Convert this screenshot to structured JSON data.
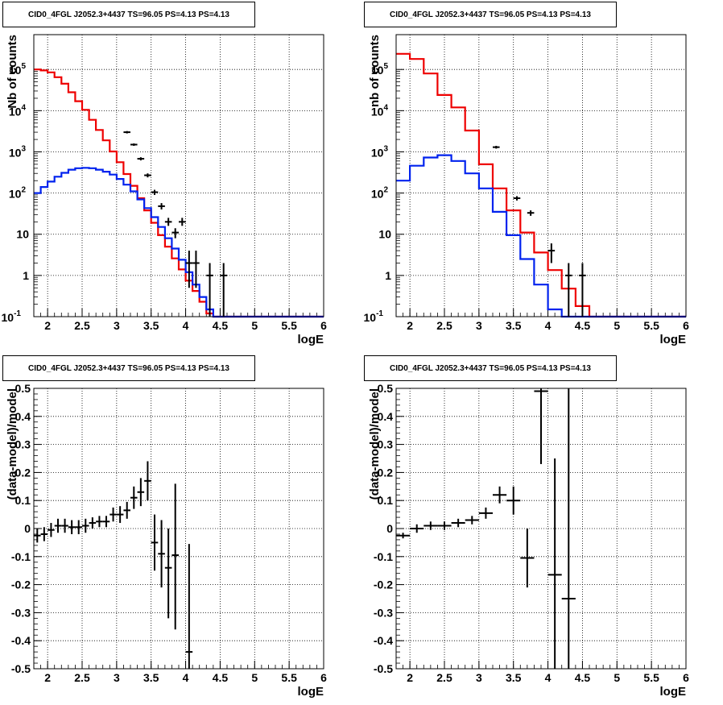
{
  "panels": [
    {
      "title": "CID0_4FGL J2052.3+4437 TS=96.05 PS=4.13 PS=4.13"
    },
    {
      "title": "CID0_4FGL J2052.3+4437 TS=96.05 PS=4.13 PS=4.13"
    },
    {
      "title": "CID0_4FGL J2052.3+4437 TS=96.05 PS=4.13 PS=4.13"
    },
    {
      "title": "CID0_4FGL J2052.3+4437 TS=96.05 PS=4.13 PS=4.13"
    }
  ],
  "colors": {
    "total_model": "#ee0000",
    "source_model": "#0022ee",
    "data": "#000000",
    "grid": "#000000"
  },
  "chart_data": [
    {
      "type": "line",
      "title": "CID0_4FGL J2052.3+4437 TS=96.05 PS=4.13 PS=4.13",
      "xlabel": "logE",
      "ylabel": "Nb of counts",
      "xlim": [
        1.8,
        6.0
      ],
      "ylim": [
        0.1,
        700000
      ],
      "yscale": "log",
      "grid": true,
      "xticks": [
        "2",
        "2.5",
        "3",
        "3.5",
        "4",
        "4.5",
        "5",
        "5.5",
        "6"
      ],
      "yticks": [
        "10^{-1}",
        "1",
        "10",
        "10^{2}",
        "10^{3}",
        "10^{4}",
        "10^{5}"
      ],
      "bin_edges": [
        1.8,
        1.9,
        2.0,
        2.1,
        2.2,
        2.3,
        2.4,
        2.5,
        2.6,
        2.7,
        2.8,
        2.9,
        3.0,
        3.1,
        3.2,
        3.3,
        3.4,
        3.5,
        3.6,
        3.7,
        3.8,
        3.9,
        4.0,
        4.1,
        4.2,
        4.3,
        4.4,
        4.5,
        4.6,
        4.7,
        4.8,
        4.9,
        5.0,
        5.1,
        5.2,
        5.3,
        5.4,
        5.5,
        5.6,
        5.7,
        5.8,
        5.9,
        6.0
      ],
      "series": [
        {
          "name": "",
          "role": "total_model",
          "values": [
            100000,
            95000,
            85000,
            65000,
            45000,
            28000,
            17000,
            10500,
            6000,
            3400,
            1900,
            1020,
            560,
            290,
            150,
            75,
            38,
            19,
            9.5,
            5,
            2.6,
            1.4,
            0.75,
            0.42,
            0.23,
            0.12,
            0.1,
            0.1,
            0.1,
            0.1,
            0.1,
            0.1,
            0.1,
            0.1,
            0.1,
            0.1,
            0.1,
            0.1,
            0.1,
            0.1,
            0.1,
            0.1
          ]
        },
        {
          "name": "",
          "role": "source_model",
          "values": [
            100,
            140,
            190,
            250,
            310,
            370,
            400,
            410,
            400,
            370,
            330,
            280,
            220,
            160,
            110,
            70,
            43,
            26,
            15,
            8,
            4.5,
            2.4,
            1.2,
            0.6,
            0.3,
            0.15,
            0.1,
            0.1,
            0.1,
            0.1,
            0.1,
            0.1,
            0.1,
            0.1,
            0.1,
            0.1,
            0.1,
            0.1,
            0.1,
            0.1,
            0.1,
            0.1
          ]
        },
        {
          "name": "",
          "role": "data",
          "points": [
            {
              "x": 3.15,
              "y": 3000,
              "ylo": 2800,
              "yhi": 3200
            },
            {
              "x": 3.25,
              "y": 1500,
              "ylo": 1400,
              "yhi": 1600
            },
            {
              "x": 3.35,
              "y": 680,
              "ylo": 620,
              "yhi": 740
            },
            {
              "x": 3.45,
              "y": 270,
              "ylo": 240,
              "yhi": 300
            },
            {
              "x": 3.55,
              "y": 105,
              "ylo": 90,
              "yhi": 120
            },
            {
              "x": 3.65,
              "y": 48,
              "ylo": 40,
              "yhi": 57
            },
            {
              "x": 3.75,
              "y": 20,
              "ylo": 16,
              "yhi": 25
            },
            {
              "x": 3.85,
              "y": 11,
              "ylo": 8,
              "yhi": 14
            },
            {
              "x": 3.95,
              "y": 20,
              "ylo": 16,
              "yhi": 25
            },
            {
              "x": 4.05,
              "y": 2,
              "ylo": 0.5,
              "yhi": 4
            },
            {
              "x": 4.15,
              "y": 2,
              "ylo": 0.5,
              "yhi": 4
            },
            {
              "x": 4.35,
              "y": 1,
              "ylo": 0.1,
              "yhi": 2
            },
            {
              "x": 4.55,
              "y": 1,
              "ylo": 0.1,
              "yhi": 2
            }
          ]
        }
      ]
    },
    {
      "type": "line",
      "title": "CID0_4FGL J2052.3+4437 TS=96.05 PS=4.13 PS=4.13",
      "xlabel": "logE",
      "ylabel": "nb of counts",
      "xlim": [
        1.8,
        6.0
      ],
      "ylim": [
        0.1,
        700000
      ],
      "yscale": "log",
      "grid": true,
      "xticks": [
        "2",
        "2.5",
        "3",
        "3.5",
        "4",
        "4.5",
        "5",
        "5.5",
        "6"
      ],
      "yticks": [
        "10^{-1}",
        "1",
        "10",
        "10^{2}",
        "10^{3}",
        "10^{4}",
        "10^{5}"
      ],
      "bin_edges": [
        1.8,
        2.0,
        2.2,
        2.4,
        2.6,
        2.8,
        3.0,
        3.2,
        3.4,
        3.6,
        3.8,
        4.0,
        4.2,
        4.4,
        4.6,
        4.8,
        5.0,
        5.2,
        5.4,
        5.6,
        5.8,
        6.0
      ],
      "series": [
        {
          "name": "",
          "role": "total_model",
          "values": [
            240000,
            180000,
            80000,
            24000,
            12000,
            3300,
            500,
            130,
            38,
            11,
            3.6,
            1.35,
            0.48,
            0.18,
            0.1,
            0.1,
            0.1,
            0.1,
            0.1,
            0.1,
            0.1
          ]
        },
        {
          "name": "",
          "role": "source_model",
          "values": [
            200,
            460,
            730,
            830,
            600,
            300,
            130,
            35,
            9.5,
            2.5,
            0.6,
            0.15,
            0.1,
            0.1,
            0.1,
            0.1,
            0.1,
            0.1,
            0.1,
            0.1,
            0.1
          ]
        },
        {
          "name": "",
          "role": "data",
          "points": [
            {
              "x": 3.25,
              "y": 1300,
              "ylo": 1200,
              "yhi": 1400
            },
            {
              "x": 3.55,
              "y": 75,
              "ylo": 66,
              "yhi": 84
            },
            {
              "x": 3.75,
              "y": 33,
              "ylo": 28,
              "yhi": 38
            },
            {
              "x": 4.05,
              "y": 4,
              "ylo": 2,
              "yhi": 6
            },
            {
              "x": 4.3,
              "y": 1,
              "ylo": 0.1,
              "yhi": 2
            },
            {
              "x": 4.5,
              "y": 1,
              "ylo": 0.1,
              "yhi": 2
            }
          ]
        }
      ]
    },
    {
      "type": "scatter",
      "title": "CID0_4FGL J2052.3+4437 TS=96.05 PS=4.13 PS=4.13",
      "xlabel": "logE",
      "ylabel": "(data-model)/model",
      "xlim": [
        1.8,
        6.0
      ],
      "ylim": [
        -0.5,
        0.5
      ],
      "yscale": "linear",
      "grid": true,
      "xticks": [
        "2",
        "2.5",
        "3",
        "3.5",
        "4",
        "4.5",
        "5",
        "5.5",
        "6"
      ],
      "yticks": [
        "-0.5",
        "-0.4",
        "-0.3",
        "-0.2",
        "-0.1",
        "0",
        "0.1",
        "0.2",
        "0.3",
        "0.4",
        "0.5"
      ],
      "series": [
        {
          "name": "",
          "role": "data",
          "points": [
            {
              "x": 1.85,
              "y": -0.025,
              "ylo": -0.05,
              "yhi": 0.0,
              "xhw": 0.05
            },
            {
              "x": 1.95,
              "y": -0.02,
              "ylo": -0.045,
              "yhi": 0.005,
              "xhw": 0.05
            },
            {
              "x": 2.05,
              "y": -0.005,
              "ylo": -0.03,
              "yhi": 0.02,
              "xhw": 0.05
            },
            {
              "x": 2.15,
              "y": 0.01,
              "ylo": -0.015,
              "yhi": 0.035,
              "xhw": 0.05
            },
            {
              "x": 2.25,
              "y": 0.01,
              "ylo": -0.015,
              "yhi": 0.035,
              "xhw": 0.05
            },
            {
              "x": 2.35,
              "y": 0.005,
              "ylo": -0.02,
              "yhi": 0.03,
              "xhw": 0.05
            },
            {
              "x": 2.45,
              "y": 0.005,
              "ylo": -0.02,
              "yhi": 0.03,
              "xhw": 0.05
            },
            {
              "x": 2.55,
              "y": 0.01,
              "ylo": -0.015,
              "yhi": 0.035,
              "xhw": 0.05
            },
            {
              "x": 2.65,
              "y": 0.02,
              "ylo": 0.0,
              "yhi": 0.04,
              "xhw": 0.05
            },
            {
              "x": 2.75,
              "y": 0.025,
              "ylo": 0.005,
              "yhi": 0.045,
              "xhw": 0.05
            },
            {
              "x": 2.85,
              "y": 0.025,
              "ylo": 0.005,
              "yhi": 0.045,
              "xhw": 0.05
            },
            {
              "x": 2.95,
              "y": 0.05,
              "ylo": 0.025,
              "yhi": 0.075,
              "xhw": 0.05
            },
            {
              "x": 3.05,
              "y": 0.05,
              "ylo": 0.02,
              "yhi": 0.08,
              "xhw": 0.05
            },
            {
              "x": 3.15,
              "y": 0.065,
              "ylo": 0.035,
              "yhi": 0.095,
              "xhw": 0.05
            },
            {
              "x": 3.25,
              "y": 0.11,
              "ylo": 0.07,
              "yhi": 0.15,
              "xhw": 0.05
            },
            {
              "x": 3.35,
              "y": 0.13,
              "ylo": 0.08,
              "yhi": 0.18,
              "xhw": 0.05
            },
            {
              "x": 3.45,
              "y": 0.17,
              "ylo": 0.1,
              "yhi": 0.24,
              "xhw": 0.05
            },
            {
              "x": 3.55,
              "y": -0.05,
              "ylo": -0.15,
              "yhi": 0.05,
              "xhw": 0.05
            },
            {
              "x": 3.65,
              "y": -0.09,
              "ylo": -0.21,
              "yhi": 0.03,
              "xhw": 0.05
            },
            {
              "x": 3.75,
              "y": -0.14,
              "ylo": -0.32,
              "yhi": 0.0,
              "xhw": 0.05
            },
            {
              "x": 3.85,
              "y": -0.095,
              "ylo": -0.36,
              "yhi": 0.16,
              "xhw": 0.05
            },
            {
              "x": 4.05,
              "y": -0.44,
              "ylo": -0.5,
              "yhi": -0.055,
              "xhw": 0.05
            }
          ]
        }
      ]
    },
    {
      "type": "scatter",
      "title": "CID0_4FGL J2052.3+4437 TS=96.05 PS=4.13 PS=4.13",
      "xlabel": "logE",
      "ylabel": "(data-model)/model",
      "xlim": [
        1.8,
        6.0
      ],
      "ylim": [
        -0.5,
        0.5
      ],
      "yscale": "linear",
      "grid": true,
      "xticks": [
        "2",
        "2.5",
        "3",
        "3.5",
        "4",
        "4.5",
        "5",
        "5.5",
        "6"
      ],
      "yticks": [
        "-0.5",
        "-0.4",
        "-0.3",
        "-0.2",
        "-0.1",
        "0",
        "0.1",
        "0.2",
        "0.3",
        "0.4",
        "0.5"
      ],
      "series": [
        {
          "name": "",
          "role": "data",
          "points": [
            {
              "x": 1.9,
              "y": -0.025,
              "ylo": -0.035,
              "yhi": -0.015,
              "xhw": 0.1
            },
            {
              "x": 2.1,
              "y": 0.0,
              "ylo": -0.015,
              "yhi": 0.015,
              "xhw": 0.1
            },
            {
              "x": 2.3,
              "y": 0.01,
              "ylo": -0.005,
              "yhi": 0.025,
              "xhw": 0.1
            },
            {
              "x": 2.5,
              "y": 0.01,
              "ylo": -0.005,
              "yhi": 0.025,
              "xhw": 0.1
            },
            {
              "x": 2.7,
              "y": 0.02,
              "ylo": 0.005,
              "yhi": 0.035,
              "xhw": 0.1
            },
            {
              "x": 2.9,
              "y": 0.03,
              "ylo": 0.015,
              "yhi": 0.045,
              "xhw": 0.1
            },
            {
              "x": 3.1,
              "y": 0.055,
              "ylo": 0.035,
              "yhi": 0.075,
              "xhw": 0.1
            },
            {
              "x": 3.3,
              "y": 0.12,
              "ylo": 0.09,
              "yhi": 0.15,
              "xhw": 0.1
            },
            {
              "x": 3.5,
              "y": 0.1,
              "ylo": 0.05,
              "yhi": 0.15,
              "xhw": 0.1
            },
            {
              "x": 3.7,
              "y": -0.105,
              "ylo": -0.21,
              "yhi": 0.0,
              "xhw": 0.1
            },
            {
              "x": 3.9,
              "y": 0.49,
              "ylo": 0.23,
              "yhi": 0.5,
              "xhw": 0.1
            },
            {
              "x": 4.1,
              "y": -0.165,
              "ylo": -0.5,
              "yhi": 0.25,
              "xhw": 0.1
            },
            {
              "x": 4.3,
              "y": -0.25,
              "ylo": -0.5,
              "yhi": 0.5,
              "xhw": 0.1
            }
          ]
        }
      ]
    }
  ]
}
